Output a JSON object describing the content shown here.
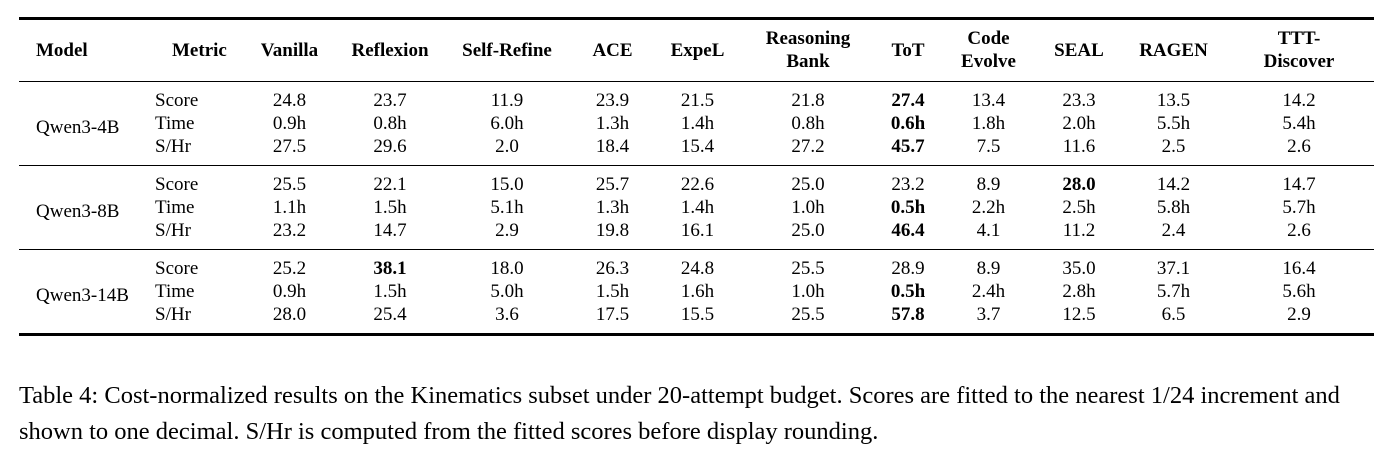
{
  "table": {
    "headers": [
      "Model",
      "Metric",
      "Vanilla",
      "Reflexion",
      "Self-Refine",
      "ACE",
      "ExpeL",
      "Reasoning\nBank",
      "ToT",
      "Code\nEvolve",
      "SEAL",
      "RAGEN",
      "TTT-\nDiscover"
    ],
    "groups": [
      {
        "model": "Qwen3-4B",
        "rows": [
          {
            "metric": "Score",
            "values": [
              "24.8",
              "23.7",
              "11.9",
              "23.9",
              "21.5",
              "21.8",
              "27.4",
              "13.4",
              "23.3",
              "13.5",
              "14.2"
            ],
            "bold": [
              6
            ]
          },
          {
            "metric": "Time",
            "values": [
              "0.9h",
              "0.8h",
              "6.0h",
              "1.3h",
              "1.4h",
              "0.8h",
              "0.6h",
              "1.8h",
              "2.0h",
              "5.5h",
              "5.4h"
            ],
            "bold": [
              6
            ]
          },
          {
            "metric": "S/Hr",
            "values": [
              "27.5",
              "29.6",
              "2.0",
              "18.4",
              "15.4",
              "27.2",
              "45.7",
              "7.5",
              "11.6",
              "2.5",
              "2.6"
            ],
            "bold": [
              6
            ]
          }
        ]
      },
      {
        "model": "Qwen3-8B",
        "rows": [
          {
            "metric": "Score",
            "values": [
              "25.5",
              "22.1",
              "15.0",
              "25.7",
              "22.6",
              "25.0",
              "23.2",
              "8.9",
              "28.0",
              "14.2",
              "14.7"
            ],
            "bold": [
              8
            ]
          },
          {
            "metric": "Time",
            "values": [
              "1.1h",
              "1.5h",
              "5.1h",
              "1.3h",
              "1.4h",
              "1.0h",
              "0.5h",
              "2.2h",
              "2.5h",
              "5.8h",
              "5.7h"
            ],
            "bold": [
              6
            ]
          },
          {
            "metric": "S/Hr",
            "values": [
              "23.2",
              "14.7",
              "2.9",
              "19.8",
              "16.1",
              "25.0",
              "46.4",
              "4.1",
              "11.2",
              "2.4",
              "2.6"
            ],
            "bold": [
              6
            ]
          }
        ]
      },
      {
        "model": "Qwen3-14B",
        "rows": [
          {
            "metric": "Score",
            "values": [
              "25.2",
              "38.1",
              "18.0",
              "26.3",
              "24.8",
              "25.5",
              "28.9",
              "8.9",
              "35.0",
              "37.1",
              "16.4"
            ],
            "bold": [
              1
            ]
          },
          {
            "metric": "Time",
            "values": [
              "0.9h",
              "1.5h",
              "5.0h",
              "1.5h",
              "1.6h",
              "1.0h",
              "0.5h",
              "2.4h",
              "2.8h",
              "5.7h",
              "5.6h"
            ],
            "bold": [
              6
            ]
          },
          {
            "metric": "S/Hr",
            "values": [
              "28.0",
              "25.4",
              "3.6",
              "17.5",
              "15.5",
              "25.5",
              "57.8",
              "3.7",
              "12.5",
              "6.5",
              "2.9"
            ],
            "bold": [
              6
            ]
          }
        ]
      }
    ]
  },
  "caption": "Table 4: Cost-normalized results on the Kinematics subset under 20-attempt budget. Scores are fitted to the nearest 1/24 increment and shown to one decimal. S/Hr is computed from the fitted scores before display rounding."
}
